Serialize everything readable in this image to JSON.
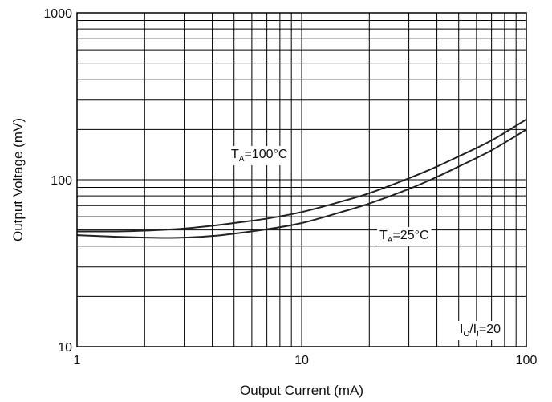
{
  "chart_data": {
    "type": "line",
    "title": "",
    "xlabel": "Output Current (mA)",
    "ylabel": "Output Voltage (mV)",
    "xscale": "log",
    "yscale": "log",
    "xlim": [
      1,
      100
    ],
    "ylim": [
      10,
      1000
    ],
    "grid": true,
    "x_tick_labels": [
      "1",
      "10",
      "100"
    ],
    "y_tick_labels": [
      "10",
      "100",
      "1000"
    ],
    "series": [
      {
        "name": "TA=100°C",
        "color": "#222222",
        "x": [
          1,
          1.5,
          2,
          3,
          4,
          5,
          7,
          10,
          15,
          20,
          30,
          40,
          50,
          70,
          100
        ],
        "y": [
          49,
          49,
          49.5,
          51,
          53,
          55,
          58.5,
          64,
          74,
          83,
          102,
          120,
          138,
          172,
          230
        ]
      },
      {
        "name": "TA=25°C",
        "color": "#222222",
        "x": [
          1,
          1.5,
          2,
          2.5,
          3,
          4,
          5,
          7,
          10,
          15,
          20,
          30,
          40,
          50,
          70,
          100
        ],
        "y": [
          46.5,
          45.5,
          45,
          44.8,
          45,
          46,
          47.5,
          50.5,
          55,
          64,
          72,
          88,
          104,
          120,
          150,
          200
        ]
      }
    ],
    "annotations": [
      {
        "main": "T",
        "sub": "A",
        "rest": "=100°C"
      },
      {
        "main": "T",
        "sub": "A",
        "rest": "=25°C"
      },
      {
        "main": "I",
        "sub": "O",
        "mid": "/I",
        "sub2": "I",
        "rest": "=20"
      }
    ]
  }
}
